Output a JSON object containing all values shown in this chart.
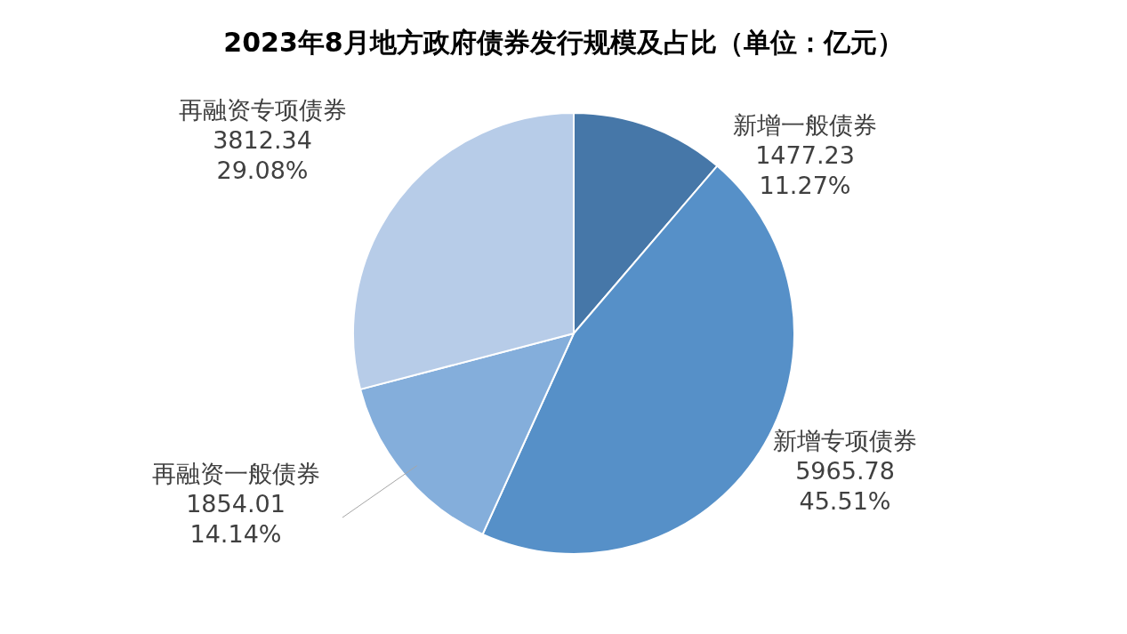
{
  "chart_data": {
    "type": "pie",
    "title": "2023年8月地方政府债券发行规模及占比（单位：亿元）",
    "categories": [
      "新增一般债券",
      "新增专项债券",
      "再融资一般债券",
      "再融资专项债券"
    ],
    "values": [
      1477.23,
      5965.78,
      1854.01,
      3812.34
    ],
    "value_labels": [
      "1477.23\n11.27%",
      "5965.78\n45.51%",
      "1854.01\n14.14%",
      "3812.34\n29.08%"
    ],
    "colors": [
      "#4677a8",
      "#5690c8",
      "#84aedb",
      "#b7cce8"
    ]
  }
}
